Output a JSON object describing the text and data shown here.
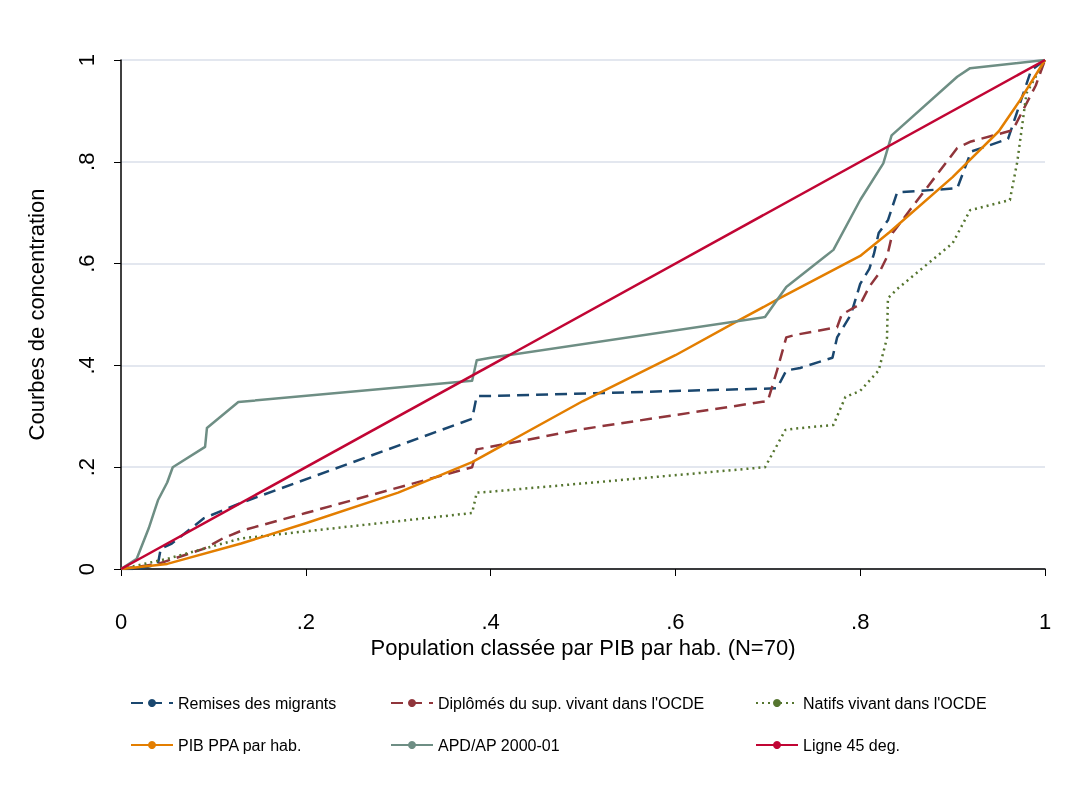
{
  "chart_data": {
    "type": "line",
    "xlabel": "Population classée par PIB par hab. (N=70)",
    "ylabel": "Courbes de concentration",
    "xlim": [
      0,
      1
    ],
    "ylim": [
      0,
      1
    ],
    "xticks": [
      0,
      {
        "value": 0.2,
        "label": ".2"
      },
      {
        "value": 0.4,
        "label": ".4"
      },
      {
        "value": 0.6,
        "label": ".6"
      },
      {
        "value": 0.8,
        "label": ".8"
      },
      1
    ],
    "yticks": [
      0,
      {
        "value": 0.2,
        "label": ".2"
      },
      {
        "value": 0.4,
        "label": ".4"
      },
      {
        "value": 0.6,
        "label": ".6"
      },
      {
        "value": 0.8,
        "label": ".8"
      },
      1
    ],
    "grid": "y",
    "legend": "bottom",
    "marker": "none",
    "series": [
      {
        "name": "Remises des migrants",
        "color": "#1a476f",
        "line_style": "dashed",
        "x": [
          0,
          0.02,
          0.04,
          0.043,
          0.055,
          0.09,
          0.13,
          0.38,
          0.385,
          0.4,
          0.71,
          0.72,
          0.735,
          0.77,
          0.775,
          0.79,
          0.8,
          0.81,
          0.815,
          0.82,
          0.83,
          0.84,
          0.905,
          0.92,
          0.96,
          0.985,
          1
        ],
        "values": [
          0,
          0,
          0.01,
          0.04,
          0.05,
          0.1,
          0.13,
          0.295,
          0.34,
          0.34,
          0.355,
          0.39,
          0.395,
          0.415,
          0.455,
          0.5,
          0.56,
          0.59,
          0.62,
          0.66,
          0.685,
          0.74,
          0.748,
          0.82,
          0.845,
          0.98,
          1
        ]
      },
      {
        "name": "Diplômés du sup. vivant dans l'OCDE",
        "color": "#90353b",
        "line_style": "dashed",
        "x": [
          0,
          0.04,
          0.09,
          0.11,
          0.13,
          0.2,
          0.38,
          0.385,
          0.4,
          0.5,
          0.7,
          0.71,
          0.72,
          0.73,
          0.775,
          0.78,
          0.8,
          0.81,
          0.82,
          0.829,
          0.835,
          0.86,
          0.905,
          0.92,
          0.965,
          0.99,
          1
        ],
        "values": [
          0,
          0.01,
          0.04,
          0.06,
          0.075,
          0.11,
          0.2,
          0.235,
          0.24,
          0.275,
          0.33,
          0.39,
          0.455,
          0.46,
          0.475,
          0.5,
          0.52,
          0.555,
          0.58,
          0.613,
          0.66,
          0.72,
          0.827,
          0.84,
          0.862,
          0.95,
          1
        ]
      },
      {
        "name": "Natifs vivant dans l'OCDE",
        "color": "#55752f",
        "line_style": "dotted",
        "x": [
          0,
          0.05,
          0.13,
          0.38,
          0.385,
          0.4,
          0.697,
          0.719,
          0.73,
          0.771,
          0.784,
          0.8,
          0.82,
          0.829,
          0.83,
          0.84,
          0.9,
          0.919,
          0.962,
          0.97,
          0.98,
          1
        ],
        "values": [
          0,
          0.02,
          0.06,
          0.11,
          0.15,
          0.152,
          0.2,
          0.273,
          0.276,
          0.283,
          0.338,
          0.35,
          0.39,
          0.454,
          0.532,
          0.55,
          0.64,
          0.705,
          0.725,
          0.8,
          0.935,
          1
        ]
      },
      {
        "name": "PIB PPA par hab.",
        "color": "#e37e00",
        "line_style": "solid",
        "x": [
          0,
          0.05,
          0.13,
          0.2,
          0.3,
          0.38,
          0.5,
          0.6,
          0.67,
          0.713,
          0.8,
          0.832,
          0.9,
          0.95,
          0.973,
          1
        ],
        "values": [
          0,
          0.01,
          0.05,
          0.09,
          0.15,
          0.21,
          0.33,
          0.42,
          0.49,
          0.532,
          0.615,
          0.662,
          0.77,
          0.86,
          0.921,
          1
        ]
      },
      {
        "name": "APD/AP 2000-01",
        "color": "#6e8e84",
        "line_style": "solid",
        "x": [
          0,
          0.017,
          0.03,
          0.04,
          0.05,
          0.056,
          0.091,
          0.093,
          0.127,
          0.38,
          0.385,
          0.4,
          0.697,
          0.72,
          0.771,
          0.8,
          0.825,
          0.834,
          0.905,
          0.919,
          1
        ],
        "values": [
          0,
          0.02,
          0.08,
          0.135,
          0.17,
          0.2,
          0.24,
          0.277,
          0.328,
          0.37,
          0.41,
          0.415,
          0.495,
          0.554,
          0.627,
          0.725,
          0.797,
          0.852,
          0.967,
          0.984,
          1
        ]
      },
      {
        "name": "Ligne 45 deg.",
        "color": "#c10534",
        "line_style": "solid",
        "x": [
          0,
          1
        ],
        "values": [
          0,
          1
        ]
      }
    ]
  }
}
